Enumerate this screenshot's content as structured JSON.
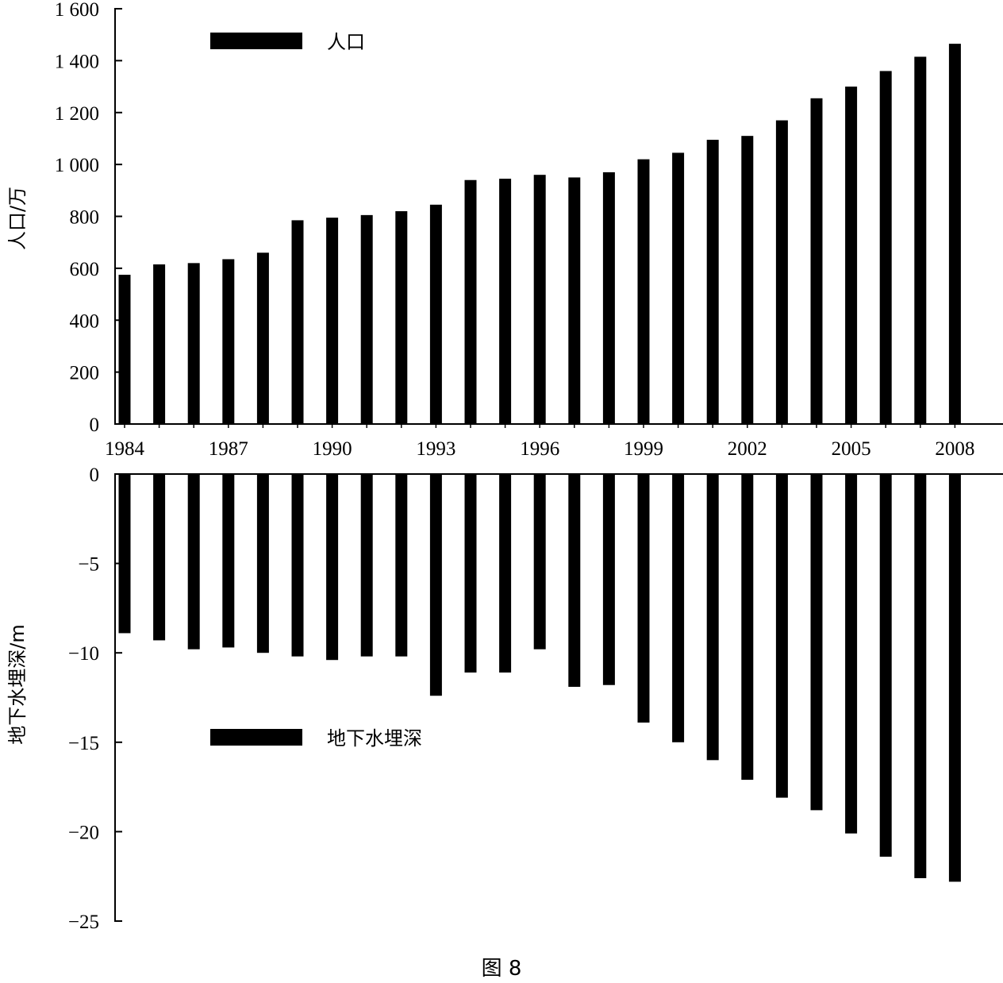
{
  "chart_data": {
    "type": "bar",
    "caption": "图 8",
    "x": [
      1984,
      1985,
      1986,
      1987,
      1988,
      1989,
      1990,
      1991,
      1992,
      1993,
      1994,
      1995,
      1996,
      1997,
      1998,
      1999,
      2000,
      2001,
      2002,
      2003,
      2004,
      2005,
      2006,
      2007,
      2008
    ],
    "x_tick_labels": [
      "1984",
      "1987",
      "1990",
      "1993",
      "1996",
      "1999",
      "2002",
      "2005",
      "2008"
    ],
    "panels": [
      {
        "ylabel": "人口/万",
        "legend": "人口",
        "ylim": [
          0,
          1600
        ],
        "y_ticks": [
          0,
          200,
          400,
          600,
          800,
          1000,
          1200,
          1400,
          1600
        ],
        "y_tick_labels": [
          "0",
          "200",
          "400",
          "600",
          "800",
          "1 000",
          "1 200",
          "1 400",
          "1 600"
        ],
        "series": [
          {
            "name": "人口",
            "values": [
              575,
              615,
              620,
              635,
              660,
              785,
              795,
              805,
              820,
              845,
              940,
              945,
              960,
              950,
              970,
              1020,
              1045,
              1095,
              1110,
              1170,
              1255,
              1300,
              1360,
              1415,
              1465
            ]
          }
        ]
      },
      {
        "ylabel": "地下水埋深/m",
        "legend": "地下水埋深",
        "ylim": [
          -25,
          0
        ],
        "y_ticks": [
          0,
          -5,
          -10,
          -15,
          -20,
          -25
        ],
        "y_tick_labels": [
          "0",
          "−5",
          "−10",
          "−15",
          "−20",
          "−25"
        ],
        "series": [
          {
            "name": "地下水埋深",
            "values": [
              -8.9,
              -9.3,
              -9.8,
              -9.7,
              -10.0,
              -10.2,
              -10.4,
              -10.2,
              -10.2,
              -12.4,
              -11.1,
              -11.1,
              -9.8,
              -11.9,
              -11.8,
              -13.9,
              -15.0,
              -16.0,
              -17.1,
              -18.1,
              -18.8,
              -20.1,
              -21.4,
              -22.6,
              -22.8
            ]
          }
        ]
      }
    ]
  }
}
